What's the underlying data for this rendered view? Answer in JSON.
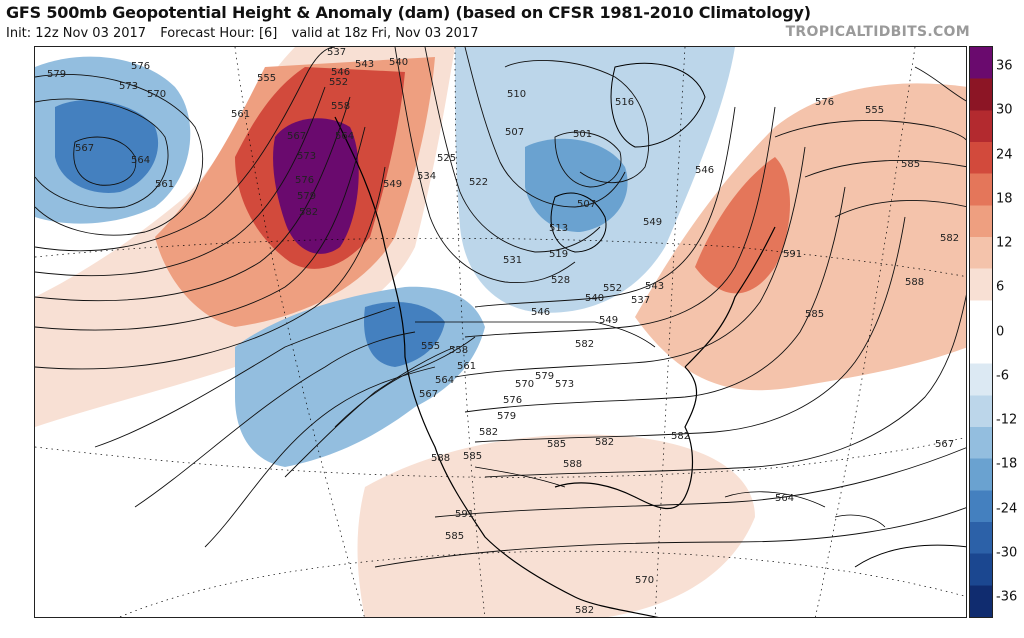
{
  "header": {
    "title": "GFS 500mb Geopotential Height & Anomaly (dam) (based on CFSR 1981-2010 Climatology)",
    "init": "Init: 12z Nov 03 2017",
    "forecast_hour": "Forecast Hour: [6]",
    "valid": "valid at 18z Fri, Nov 03 2017",
    "brand": "TROPICALTIDBITS.COM"
  },
  "colorbar": {
    "labels": [
      "36",
      "30",
      "24",
      "18",
      "12",
      "6",
      "0",
      "-6",
      "-12",
      "-18",
      "-24",
      "-30",
      "-36"
    ],
    "colors": {
      "pos": [
        "#f8e0d4",
        "#f4c3ab",
        "#ee9f80",
        "#e4765a",
        "#d24a3c",
        "#b32a2f",
        "#8c1525",
        "#6a0a6e"
      ],
      "neg": [
        "#dce9f3",
        "#bcd6ea",
        "#93bedf",
        "#6aa2d0",
        "#4480bf",
        "#2c61a8",
        "#1b4790",
        "#102c6f"
      ]
    }
  },
  "contour_labels": [
    "579",
    "576",
    "573",
    "570",
    "567",
    "564",
    "561",
    "537",
    "543",
    "546",
    "540",
    "552",
    "555",
    "558",
    "561",
    "564",
    "567",
    "573",
    "576",
    "579",
    "582",
    "525",
    "534",
    "549",
    "522",
    "531",
    "519",
    "513",
    "507",
    "501",
    "516",
    "510",
    "507",
    "528",
    "543",
    "537",
    "540",
    "546",
    "549",
    "552",
    "555",
    "558",
    "561",
    "564",
    "567",
    "570",
    "573",
    "576",
    "579",
    "582",
    "585",
    "588",
    "591",
    "585",
    "582",
    "585",
    "588",
    "582",
    "579",
    "576",
    "555",
    "546",
    "549",
    "582",
    "585",
    "582",
    "588",
    "591",
    "585",
    "582",
    "567",
    "564",
    "570"
  ]
}
